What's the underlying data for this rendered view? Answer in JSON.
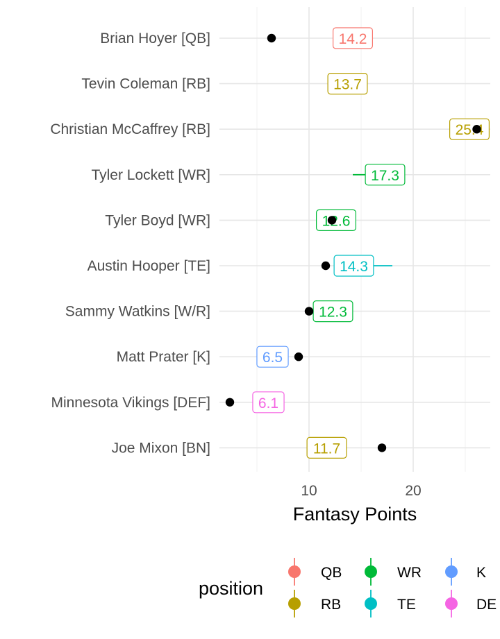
{
  "chart_data": {
    "type": "scatter",
    "xlabel": "Fantasy Points",
    "xticks": [
      10,
      20
    ],
    "xlim": [
      1.4,
      27.4
    ],
    "grid": true,
    "legend_title": "position",
    "legend_placement": "bottom",
    "legend": [
      {
        "name": "QB",
        "color": "#F8766D"
      },
      {
        "name": "RB",
        "color": "#B79F00"
      },
      {
        "name": "WR",
        "color": "#00BA38"
      },
      {
        "name": "TE",
        "color": "#00BFC4"
      },
      {
        "name": "K",
        "color": "#619CFF"
      },
      {
        "name": "DE",
        "color": "#F564E3"
      }
    ],
    "players": [
      {
        "name": "Brian Hoyer [QB]",
        "position": "QB",
        "projection": 14.2,
        "range": [
          12.5,
          16.0
        ],
        "actual": 6.4
      },
      {
        "name": "Tevin Coleman [RB]",
        "position": "RB",
        "projection": 13.7,
        "range": [
          13.0,
          14.4
        ],
        "actual": null
      },
      {
        "name": "Christian McCaffrey [RB]",
        "position": "RB",
        "projection": 25.4,
        "range": [
          23.5,
          27.0
        ],
        "actual": 26.1
      },
      {
        "name": "Tyler Lockett [WR]",
        "position": "WR",
        "projection": 17.3,
        "range": [
          14.2,
          18.5
        ],
        "actual": null
      },
      {
        "name": "Tyler Boyd [WR]",
        "position": "WR",
        "projection": 12.6,
        "range": [
          11.5,
          13.5
        ],
        "actual": 12.2
      },
      {
        "name": "Austin Hooper [TE]",
        "position": "TE",
        "projection": 14.3,
        "range": [
          12.5,
          18.0
        ],
        "actual": 11.6
      },
      {
        "name": "Sammy Watkins [W/R]",
        "position": "WR",
        "projection": 12.3,
        "range": [
          11.0,
          13.5
        ],
        "actual": 10.0
      },
      {
        "name": "Matt Prater [K]",
        "position": "K",
        "projection": 6.5,
        "range": [
          5.5,
          7.5
        ],
        "actual": 9.0
      },
      {
        "name": "Minnesota Vikings [DEF]",
        "position": "DE",
        "projection": 6.1,
        "range": [
          5.0,
          7.0
        ],
        "actual": 2.4
      },
      {
        "name": "Joe Mixon [BN]",
        "position": "RB",
        "projection": 11.7,
        "range": [
          10.5,
          13.0
        ],
        "actual": 17.0
      }
    ]
  }
}
